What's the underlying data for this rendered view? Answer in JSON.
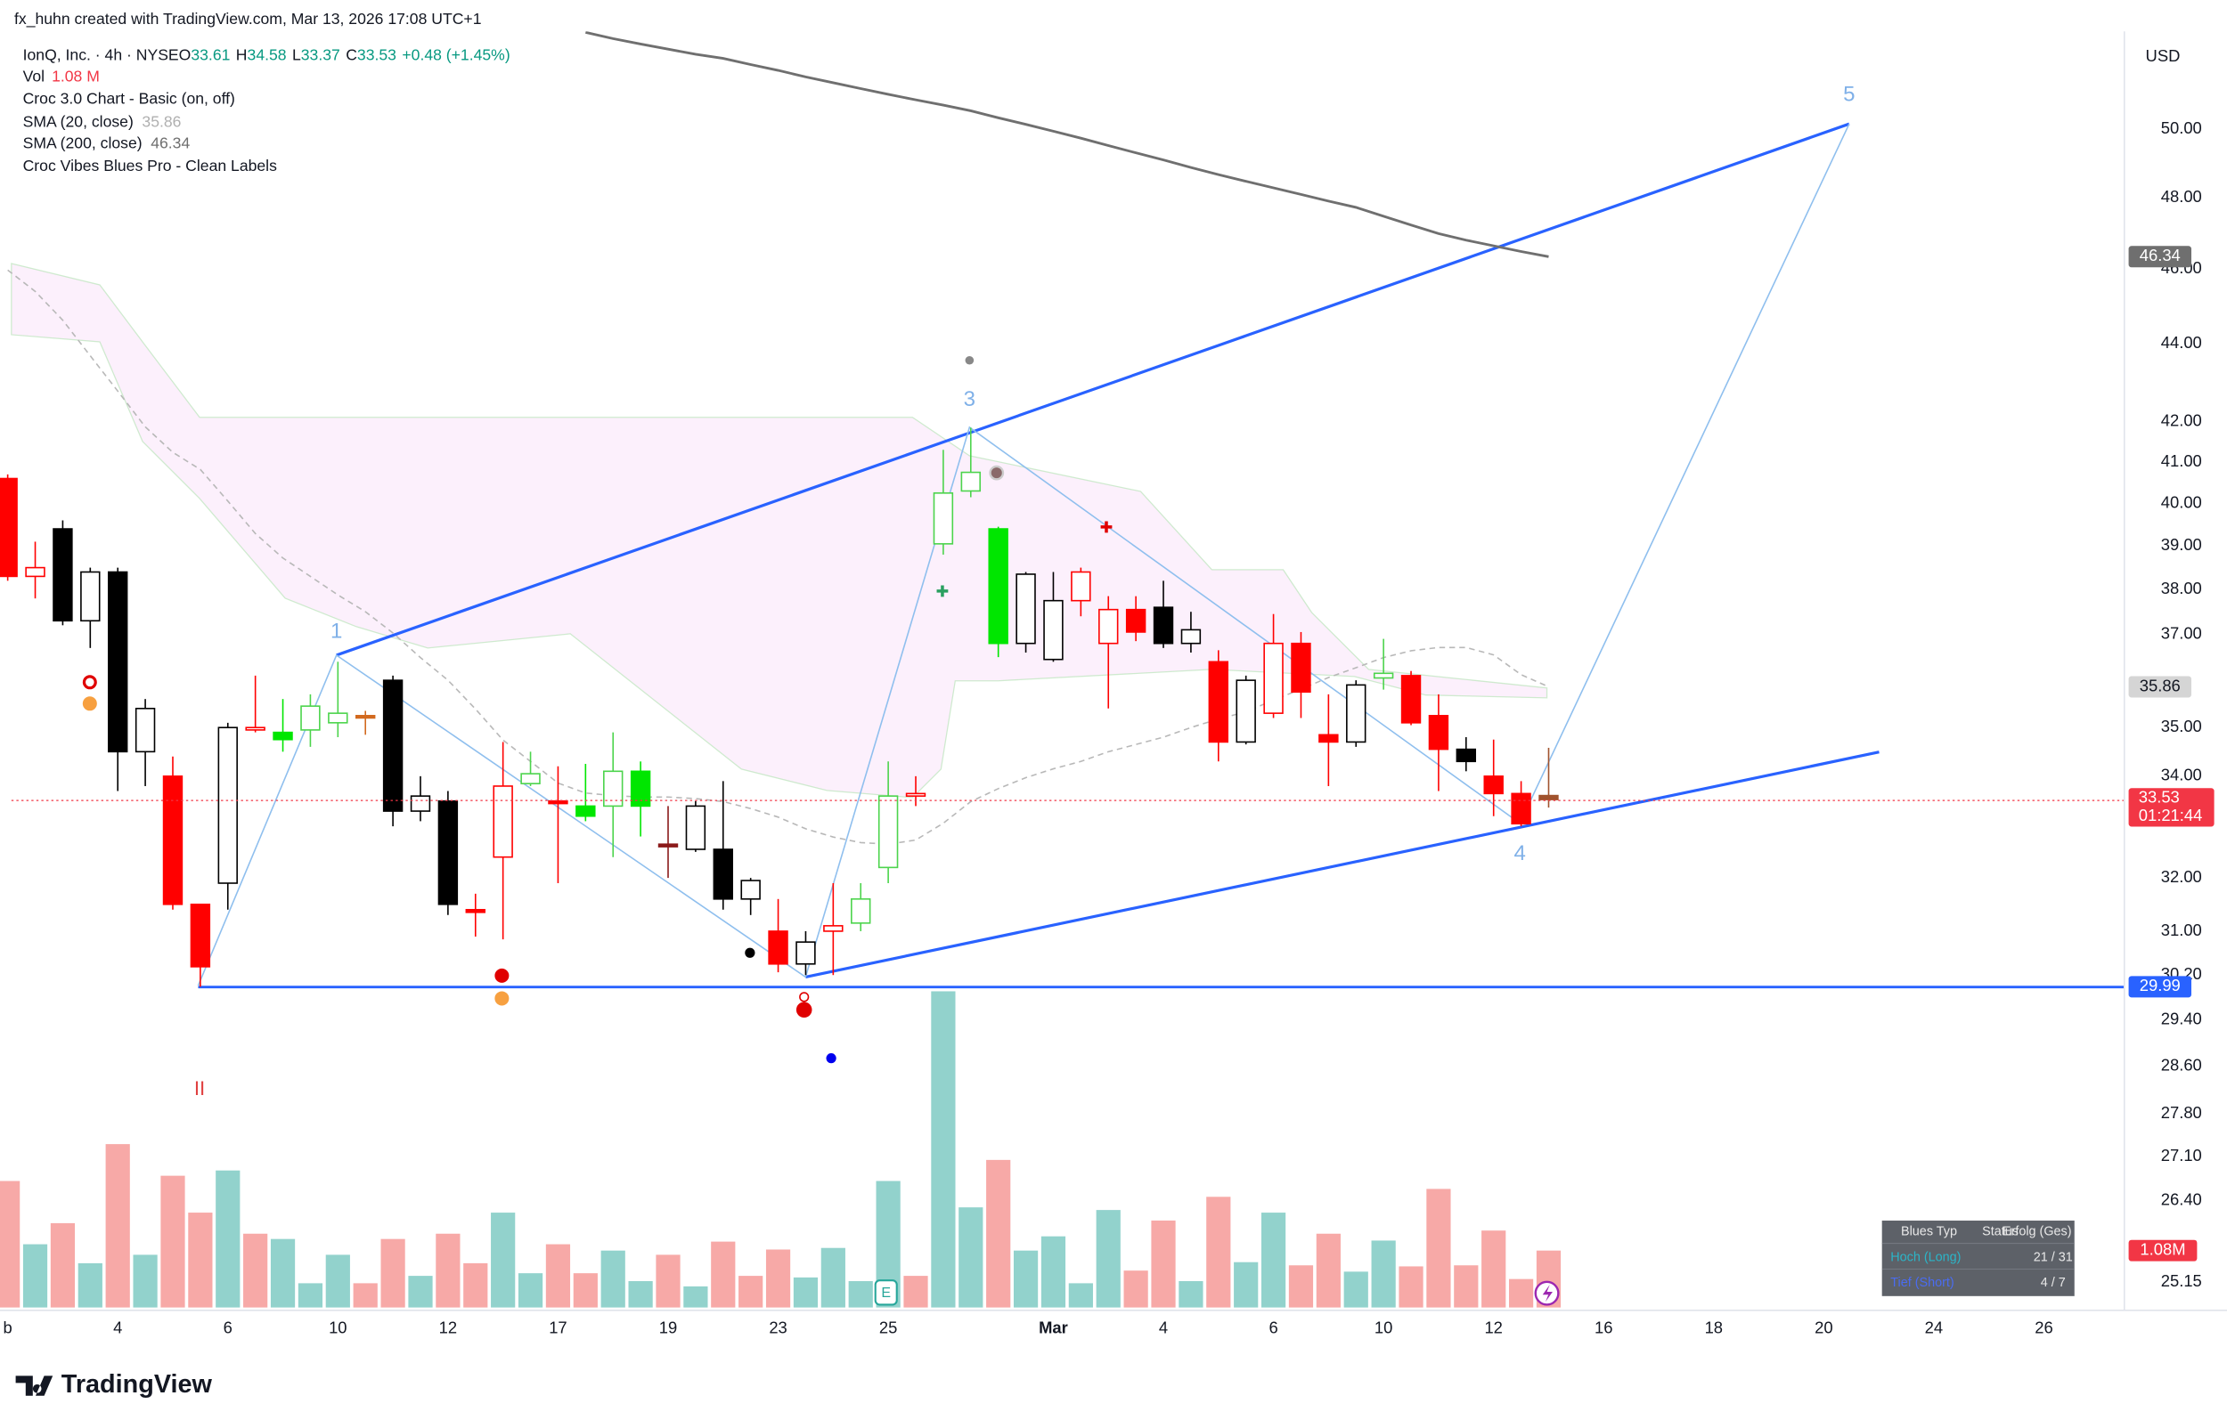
{
  "header": {
    "credit": "fx_huhn created with TradingView.com, Mar 13, 2026 17:08 UTC+1",
    "logo": "TradingView"
  },
  "chart_data": {
    "type": "candlestick",
    "log_scale": true,
    "symbol": "IonQ, Inc. · 4h · NYSE",
    "ohlc_letters": [
      "O",
      "H",
      "L",
      "C"
    ],
    "change": "+0.48 (+1.45%)",
    "indicators": [
      "Croc 3.0 Chart - Basic (on, off)",
      "Croc Vibes Blues Pro - Clean Labels"
    ],
    "currency": "USD",
    "countdown": "01:21:44",
    "ylim": [
      24.73,
      53.0
    ],
    "yticks": [
      {
        "value": 50,
        "label": "50.00"
      },
      {
        "value": 48,
        "label": "48.00"
      },
      {
        "value": 46,
        "label": "46.00"
      },
      {
        "value": 44,
        "label": "44.00"
      },
      {
        "value": 42,
        "label": "42.00"
      },
      {
        "value": 41,
        "label": "41.00"
      },
      {
        "value": 40,
        "label": "40.00"
      },
      {
        "value": 39,
        "label": "39.00"
      },
      {
        "value": 38,
        "label": "38.00"
      },
      {
        "value": 37,
        "label": "37.00"
      },
      {
        "value": 35,
        "label": "35.00"
      },
      {
        "value": 34,
        "label": "34.00"
      },
      {
        "value": 32,
        "label": "32.00"
      },
      {
        "value": 31,
        "label": "31.00"
      },
      {
        "value": 30.2,
        "label": "30.20"
      },
      {
        "value": 29.4,
        "label": "29.40"
      },
      {
        "value": 28.6,
        "label": "28.60"
      },
      {
        "value": 27.8,
        "label": "27.80"
      },
      {
        "value": 27.1,
        "label": "27.10"
      },
      {
        "value": 26.4,
        "label": "26.40"
      },
      {
        "value": 25.15,
        "label": "25.15"
      }
    ],
    "xticks": [
      {
        "value": 0,
        "label": "b"
      },
      {
        "value": 4,
        "label": "4"
      },
      {
        "value": 8,
        "label": "6"
      },
      {
        "value": 12,
        "label": "10"
      },
      {
        "value": 16,
        "label": "12"
      },
      {
        "value": 20,
        "label": "17"
      },
      {
        "value": 24,
        "label": "19"
      },
      {
        "value": 28,
        "label": "23"
      },
      {
        "value": 32,
        "label": "25"
      },
      {
        "value": 38,
        "label": "Mar"
      },
      {
        "value": 42,
        "label": "4"
      },
      {
        "value": 46,
        "label": "6"
      },
      {
        "value": 50,
        "label": "10"
      },
      {
        "value": 54,
        "label": "12"
      },
      {
        "value": 58,
        "label": "16"
      },
      {
        "value": 62,
        "label": "18"
      },
      {
        "value": 66,
        "label": "20"
      },
      {
        "value": 70,
        "label": "24"
      },
      {
        "value": 74,
        "label": "26"
      }
    ],
    "candles": {
      "open": [
        40.6,
        38.3,
        39.4,
        37.3,
        38.4,
        34.5,
        34.0,
        31.5,
        31.9,
        34.95,
        34.75,
        34.95,
        35.1,
        35.25,
        36.0,
        33.3,
        33.5,
        31.4,
        32.4,
        33.85,
        33.5,
        33.2,
        33.4,
        33.4,
        32.65,
        32.55,
        32.55,
        31.6,
        31.0,
        30.4,
        31.0,
        31.15,
        32.2,
        33.6,
        39.05,
        40.3,
        39.4,
        36.8,
        36.45,
        37.75,
        36.8,
        37.55,
        37.6,
        36.8,
        36.4,
        34.7,
        35.3,
        36.8,
        34.85,
        34.7,
        36.05,
        36.1,
        35.25,
        34.55,
        34.0,
        33.65,
        33.61
      ],
      "high": [
        40.7,
        39.1,
        39.6,
        38.5,
        38.5,
        35.6,
        34.4,
        31.5,
        35.1,
        36.1,
        35.6,
        35.7,
        36.4,
        35.35,
        36.1,
        34.0,
        33.7,
        31.7,
        34.7,
        34.5,
        34.2,
        34.25,
        34.9,
        34.3,
        33.4,
        33.5,
        33.9,
        32.0,
        31.6,
        31.0,
        31.9,
        31.9,
        34.3,
        34.0,
        41.3,
        41.85,
        39.45,
        38.4,
        38.4,
        38.5,
        37.85,
        37.85,
        38.2,
        37.5,
        36.65,
        36.1,
        37.45,
        37.05,
        35.7,
        36.0,
        36.9,
        36.2,
        35.7,
        34.8,
        34.75,
        33.9,
        34.58
      ],
      "low": [
        38.2,
        37.8,
        37.2,
        36.7,
        33.7,
        33.8,
        31.4,
        29.99,
        31.4,
        34.9,
        34.5,
        34.6,
        34.8,
        34.85,
        33.0,
        33.1,
        31.3,
        30.9,
        30.85,
        33.8,
        31.9,
        33.1,
        32.4,
        32.8,
        32.0,
        32.5,
        31.4,
        31.3,
        30.25,
        30.2,
        30.2,
        31.0,
        31.9,
        33.4,
        38.8,
        40.15,
        36.5,
        36.6,
        36.4,
        37.4,
        35.4,
        36.85,
        36.7,
        36.6,
        34.3,
        34.65,
        35.2,
        35.2,
        33.8,
        34.6,
        35.8,
        35.05,
        33.7,
        34.1,
        33.2,
        33.0,
        33.37
      ],
      "close": [
        38.3,
        38.5,
        37.3,
        38.4,
        34.5,
        35.4,
        31.5,
        30.35,
        35.0,
        35.0,
        34.9,
        35.45,
        35.3,
        35.2,
        33.3,
        33.6,
        31.5,
        31.35,
        33.8,
        34.05,
        33.45,
        33.4,
        34.1,
        34.1,
        32.6,
        33.4,
        31.6,
        31.95,
        30.4,
        30.8,
        31.1,
        31.6,
        33.6,
        33.65,
        40.25,
        40.75,
        36.8,
        38.35,
        37.75,
        38.4,
        37.55,
        37.05,
        36.8,
        37.1,
        34.7,
        36.0,
        36.8,
        35.75,
        34.7,
        35.9,
        36.15,
        35.1,
        34.55,
        34.3,
        33.65,
        33.05,
        33.53
      ],
      "colors": [
        "#ff0000",
        "#ffffff",
        "#000000",
        "#ffffff",
        "#000000",
        "#ffffff",
        "#ff0000",
        "#ff0000",
        "#ffffff",
        "#ffffff",
        "#00e600",
        "#ffffff",
        "#ffffff",
        "#d2691e",
        "#000000",
        "#ffffff",
        "#000000",
        "#ff0000",
        "#ffffff",
        "#ffffff",
        "#ff0000",
        "#00e600",
        "#ffffff",
        "#00e600",
        "#8b1a1a",
        "#ffffff",
        "#000000",
        "#ffffff",
        "#ff0000",
        "#ffffff",
        "#ffffff",
        "#ffffff",
        "#ffffff",
        "#ffffff",
        "#ffffff",
        "#ffffff",
        "#00e600",
        "#ffffff",
        "#ffffff",
        "#ffffff",
        "#ffffff",
        "#ff0000",
        "#000000",
        "#ffffff",
        "#ff0000",
        "#ffffff",
        "#ffffff",
        "#ff0000",
        "#ff0000",
        "#ffffff",
        "#ffffff",
        "#ff0000",
        "#ff0000",
        "#000000",
        "#ff0000",
        "#ff0000",
        "#a0522d"
      ],
      "outlines": [
        "#ff0000",
        "#ff0000",
        "#000000",
        "#000000",
        "#000000",
        "#000000",
        "#ff0000",
        "#ff0000",
        "#000000",
        "#ff0000",
        "#00e600",
        "#4cd44c",
        "#4cd44c",
        "#d2691e",
        "#000000",
        "#000000",
        "#000000",
        "#ff0000",
        "#ff0000",
        "#4cd44c",
        "#ff0000",
        "#00e600",
        "#4cd44c",
        "#00e600",
        "#8b1a1a",
        "#000000",
        "#000000",
        "#000000",
        "#ff0000",
        "#000000",
        "#ff0000",
        "#4cd44c",
        "#4cd44c",
        "#ff0000",
        "#4cd44c",
        "#4cd44c",
        "#00e600",
        "#000000",
        "#000000",
        "#ff0000",
        "#ff0000",
        "#ff0000",
        "#000000",
        "#000000",
        "#ff0000",
        "#000000",
        "#ff0000",
        "#ff0000",
        "#ff0000",
        "#000000",
        "#4cd44c",
        "#ff0000",
        "#ff0000",
        "#000000",
        "#ff0000",
        "#ff0000",
        "#a0522d"
      ],
      "last_color": "#f23645"
    },
    "volume": {
      "name": "Vol",
      "value_label": "1.08 M",
      "last_label": {
        "value": 1.08,
        "label": "1.08M"
      },
      "ylim": [
        0,
        7
      ],
      "values": [
        2.4,
        1.2,
        1.6,
        0.84,
        3.1,
        1.0,
        2.5,
        1.8,
        2.6,
        1.4,
        1.3,
        0.46,
        1.0,
        0.46,
        1.3,
        0.6,
        1.4,
        0.84,
        1.8,
        0.65,
        1.2,
        0.65,
        1.08,
        0.5,
        1.0,
        0.4,
        1.25,
        0.6,
        1.1,
        0.57,
        1.13,
        0.5,
        2.4,
        0.6,
        6.0,
        1.9,
        2.8,
        1.08,
        1.35,
        0.46,
        1.85,
        0.7,
        1.65,
        0.5,
        2.1,
        0.86,
        1.8,
        0.8,
        1.4,
        0.68,
        1.27,
        0.78,
        2.25,
        0.8,
        1.46,
        0.54,
        1.08
      ],
      "colors": [
        "#f7a9a7",
        "#92d2cc",
        "#f7a9a7",
        "#92d2cc",
        "#f7a9a7",
        "#92d2cc",
        "#f7a9a7",
        "#f7a9a7",
        "#92d2cc",
        "#f7a9a7",
        "#92d2cc",
        "#92d2cc",
        "#92d2cc",
        "#f7a9a7",
        "#f7a9a7",
        "#92d2cc",
        "#f7a9a7",
        "#f7a9a7",
        "#92d2cc",
        "#92d2cc",
        "#f7a9a7",
        "#f7a9a7",
        "#92d2cc",
        "#92d2cc",
        "#f7a9a7",
        "#92d2cc",
        "#f7a9a7",
        "#f7a9a7",
        "#f7a9a7",
        "#92d2cc",
        "#92d2cc",
        "#92d2cc",
        "#92d2cc",
        "#f7a9a7",
        "#92d2cc",
        "#92d2cc",
        "#f7a9a7",
        "#92d2cc",
        "#92d2cc",
        "#92d2cc",
        "#92d2cc",
        "#f7a9a7",
        "#f7a9a7",
        "#92d2cc",
        "#f7a9a7",
        "#92d2cc",
        "#92d2cc",
        "#f7a9a7",
        "#f7a9a7",
        "#92d2cc",
        "#92d2cc",
        "#f7a9a7",
        "#f7a9a7",
        "#f7a9a7",
        "#f7a9a7",
        "#f7a9a7",
        "#f7a9a7"
      ]
    },
    "sma": [
      {
        "name": "SMA (20, close)",
        "color": "#b8b8b8",
        "dashed": true,
        "values": [
          45.97,
          45.39,
          44.62,
          43.68,
          42.77,
          41.87,
          41.24,
          40.82,
          40.06,
          39.29,
          38.72,
          38.3,
          37.88,
          37.5,
          37.03,
          36.49,
          36.0,
          35.39,
          34.74,
          34.3,
          33.86,
          33.66,
          33.61,
          33.58,
          33.58,
          33.55,
          33.49,
          33.35,
          33.18,
          32.95,
          32.79,
          32.68,
          32.65,
          32.73,
          33.06,
          33.49,
          33.75,
          33.97,
          34.15,
          34.3,
          34.5,
          34.65,
          34.8,
          35.0,
          35.18,
          35.33,
          35.58,
          35.81,
          36.06,
          36.27,
          36.49,
          36.64,
          36.71,
          36.71,
          36.55,
          36.12,
          35.86
        ]
      },
      {
        "name": "SMA (200, close)",
        "color": "#6f6f6f",
        "dashed": false,
        "values": [
          null,
          null,
          null,
          null,
          null,
          null,
          null,
          null,
          null,
          null,
          null,
          null,
          null,
          null,
          null,
          null,
          null,
          null,
          null,
          null,
          null,
          52.97,
          52.77,
          52.6,
          52.44,
          52.28,
          52.15,
          51.96,
          51.78,
          51.58,
          51.4,
          51.22,
          51.05,
          50.88,
          50.72,
          50.55,
          50.34,
          50.14,
          49.94,
          49.73,
          49.51,
          49.3,
          49.09,
          48.87,
          48.66,
          48.47,
          48.28,
          48.09,
          47.9,
          47.72,
          47.47,
          47.22,
          46.98,
          46.8,
          46.64,
          46.48,
          46.34
        ]
      }
    ],
    "wave_labels": [
      "1",
      "3",
      "4",
      "5",
      "II"
    ],
    "table": {
      "header": [
        "Blues Typ",
        "Status",
        "Erfolg (Ges)"
      ],
      "rows": [
        [
          "Hoch (Long)",
          "21 / 31"
        ],
        [
          "Tief (Short)",
          "4 / 7"
        ]
      ]
    },
    "earnings_badge": "E"
  }
}
